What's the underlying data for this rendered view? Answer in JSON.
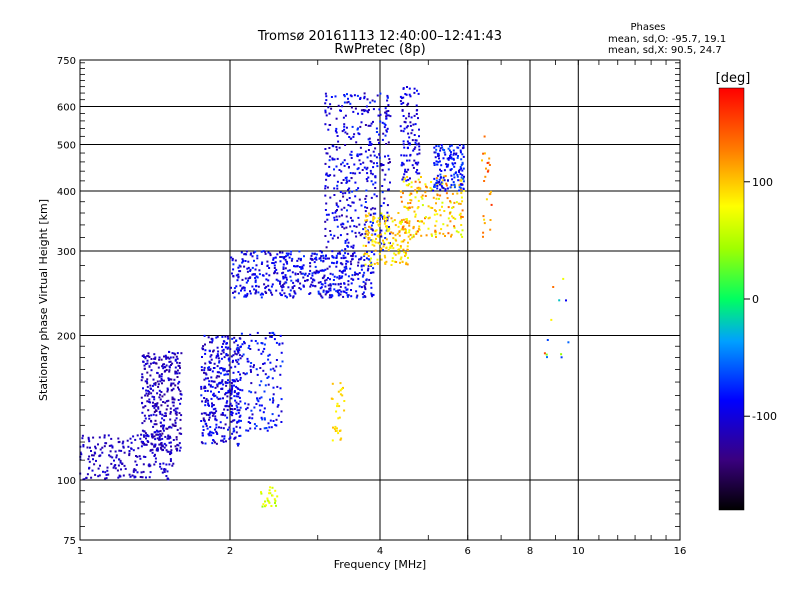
{
  "chart_data": {
    "type": "scatter",
    "title": "Tromsø 20161113 12:40:00–12:41:43",
    "subtitle": "RwPretec (8p)",
    "xlabel": "Frequency [MHz]",
    "ylabel": "Stationary phase Virtual Height [km]",
    "x_scale": "log",
    "y_scale": "log",
    "xlim": [
      1,
      16
    ],
    "ylim": [
      75,
      750
    ],
    "x_ticks": [
      1,
      2,
      4,
      6,
      8,
      10,
      16
    ],
    "x_tick_labels": [
      "1",
      "2",
      "4",
      "6",
      "8",
      "10",
      "16"
    ],
    "y_ticks": [
      75,
      100,
      200,
      300,
      400,
      500,
      600,
      750
    ],
    "y_tick_labels": [
      "75",
      "100",
      "200",
      "300",
      "400",
      "500",
      "600",
      "750"
    ],
    "grid": true,
    "stats": {
      "heading": "Phases",
      "line_o": "mean, sd,O:  -95.7, 19.1",
      "line_x": "mean, sd,X:  90.5, 24.7"
    },
    "colorbar": {
      "label": "[deg]",
      "range": [
        -180,
        180
      ],
      "ticks": [
        100,
        0,
        -100
      ],
      "tick_labels": [
        "100",
        "0",
        "-100"
      ]
    },
    "series": [
      {
        "clusters": [
          {
            "x": [
              1.0,
              1.55
            ],
            "y": [
              100,
              125
            ],
            "phase": [
              -120,
              -100
            ],
            "n": 220
          },
          {
            "x": [
              1.33,
              1.6
            ],
            "y": [
              115,
              185
            ],
            "phase": [
              -130,
              -95
            ],
            "n": 340
          },
          {
            "x": [
              1.75,
              2.1
            ],
            "y": [
              118,
              200
            ],
            "phase": [
              -125,
              -75
            ],
            "n": 360
          },
          {
            "x": [
              2.05,
              2.55
            ],
            "y": [
              125,
              205
            ],
            "phase": [
              -115,
              -65
            ],
            "n": 160
          },
          {
            "x": [
              2.0,
              3.9
            ],
            "y": [
              240,
              300
            ],
            "phase": [
              -120,
              -70
            ],
            "n": 520
          },
          {
            "x": [
              3.1,
              4.2
            ],
            "y": [
              300,
              640
            ],
            "phase": [
              -125,
              -70
            ],
            "n": 420
          },
          {
            "x": [
              4.4,
              4.8
            ],
            "y": [
              420,
              660
            ],
            "phase": [
              -120,
              -80
            ],
            "n": 110
          },
          {
            "x": [
              3.7,
              4.6
            ],
            "y": [
              280,
              360
            ],
            "phase": [
              70,
              120
            ],
            "n": 180
          },
          {
            "x": [
              4.4,
              5.9
            ],
            "y": [
              320,
              430
            ],
            "phase": [
              60,
              140
            ],
            "n": 190
          },
          {
            "x": [
              5.1,
              5.9
            ],
            "y": [
              400,
              500
            ],
            "phase": [
              -110,
              -60
            ],
            "n": 150
          },
          {
            "x": [
              3.2,
              3.4
            ],
            "y": [
              120,
              160
            ],
            "phase": [
              80,
              110
            ],
            "n": 30
          },
          {
            "x": [
              2.3,
              2.5
            ],
            "y": [
              88,
              97
            ],
            "phase": [
              40,
              80
            ],
            "n": 25
          },
          {
            "x": [
              6.4,
              6.7
            ],
            "y": [
              320,
              520
            ],
            "phase": [
              90,
              160
            ],
            "n": 25
          },
          {
            "x": [
              8.5,
              9.8
            ],
            "y": [
              180,
              290
            ],
            "phase": [
              -110,
              160
            ],
            "n": 12
          }
        ]
      }
    ]
  }
}
